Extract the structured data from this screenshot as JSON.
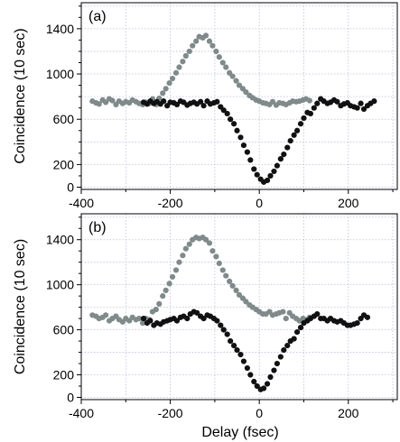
{
  "chart_data": [
    {
      "type": "scatter",
      "panel_label": "(a)",
      "xlabel": "",
      "ylabel": "Coincidence (10 sec)",
      "xlim": [
        -400,
        310
      ],
      "ylim": [
        -20,
        1630
      ],
      "xticks": [
        -400,
        -200,
        0,
        200
      ],
      "xtick_labels": [
        "-400",
        "-200",
        "0",
        "200"
      ],
      "yticks": [
        0,
        200,
        600,
        1000,
        1400
      ],
      "ytick_labels": [
        "0",
        "200",
        "600",
        "1000",
        "1400"
      ],
      "grid": true,
      "colors": {
        "series_gray": "#808a8a",
        "series_black": "#111111",
        "grid": "#b8c0d8"
      },
      "series": [
        {
          "x": [
            -375,
            -367,
            -360,
            -352,
            -345,
            -337,
            -330,
            -322,
            -315,
            -307,
            -300,
            -292,
            -285,
            -277,
            -270,
            -262,
            -255,
            -247,
            -240,
            -232,
            -225,
            -217,
            -210,
            -202,
            -195,
            -187,
            -180,
            -172,
            -165,
            -157,
            -150,
            -142,
            -135,
            -127,
            -120,
            -112,
            -105,
            -97,
            -90,
            -82,
            -75,
            -67,
            -60,
            -52,
            -45,
            -37,
            -30,
            -22,
            -15,
            -7,
            0,
            8,
            15,
            23,
            30,
            38,
            45,
            53,
            60,
            68,
            75,
            83,
            90,
            98,
            105,
            113
          ],
          "y": [
            760,
            745,
            735,
            770,
            750,
            780,
            765,
            730,
            760,
            740,
            755,
            745,
            770,
            755,
            740,
            730,
            750,
            740,
            780,
            730,
            785,
            830,
            870,
            920,
            960,
            1010,
            1060,
            1110,
            1160,
            1200,
            1250,
            1290,
            1330,
            1320,
            1340,
            1290,
            1250,
            1200,
            1150,
            1100,
            1060,
            1010,
            980,
            940,
            900,
            870,
            840,
            810,
            790,
            770,
            760,
            745,
            740,
            730,
            755,
            725,
            745,
            740,
            730,
            745,
            760,
            755,
            760,
            770,
            780,
            765
          ]
        },
        {
          "x": [
            -260,
            -252,
            -245,
            -237,
            -230,
            -222,
            -215,
            -207,
            -200,
            -192,
            -185,
            -177,
            -170,
            -162,
            -155,
            -147,
            -140,
            -132,
            -125,
            -117,
            -110,
            -102,
            -95,
            -87,
            -80,
            -72,
            -65,
            -57,
            -50,
            -42,
            -35,
            -27,
            -20,
            -12,
            -5,
            3,
            10,
            18,
            25,
            33,
            40,
            48,
            55,
            63,
            70,
            78,
            85,
            93,
            100,
            108,
            115,
            123,
            130,
            138,
            145,
            153,
            160,
            168,
            175,
            183,
            190,
            198,
            205,
            213,
            220,
            228,
            235,
            243,
            250,
            258
          ],
          "y": [
            750,
            735,
            760,
            740,
            755,
            735,
            760,
            720,
            750,
            745,
            730,
            760,
            750,
            725,
            740,
            750,
            735,
            755,
            720,
            760,
            735,
            745,
            755,
            710,
            680,
            650,
            600,
            560,
            500,
            440,
            370,
            310,
            240,
            160,
            110,
            70,
            45,
            60,
            100,
            140,
            190,
            250,
            290,
            350,
            410,
            460,
            500,
            560,
            610,
            660,
            650,
            700,
            740,
            780,
            760,
            740,
            750,
            770,
            755,
            720,
            735,
            745,
            720,
            710,
            700,
            740,
            690,
            720,
            740,
            760
          ]
        }
      ]
    },
    {
      "type": "scatter",
      "panel_label": "(b)",
      "xlabel": "Delay (fsec)",
      "ylabel": "Coincidence (10 sec)",
      "xlim": [
        -400,
        310
      ],
      "ylim": [
        -20,
        1630
      ],
      "xticks": [
        -400,
        -200,
        0,
        200
      ],
      "xtick_labels": [
        "-400",
        "-200",
        "0",
        "200"
      ],
      "yticks": [
        0,
        200,
        600,
        1000,
        1400
      ],
      "ytick_labels": [
        "0",
        "200",
        "600",
        "1000",
        "1400"
      ],
      "grid": true,
      "colors": {
        "series_gray": "#808a8a",
        "series_black": "#111111",
        "grid": "#b8c0d8"
      },
      "series": [
        {
          "x": [
            -375,
            -367,
            -360,
            -352,
            -345,
            -337,
            -330,
            -322,
            -315,
            -307,
            -300,
            -292,
            -285,
            -277,
            -270,
            -262,
            -255,
            -247,
            -240,
            -232,
            -225,
            -217,
            -210,
            -202,
            -195,
            -187,
            -180,
            -172,
            -165,
            -157,
            -150,
            -142,
            -135,
            -127,
            -120,
            -112,
            -105,
            -97,
            -90,
            -82,
            -75,
            -67,
            -60,
            -52,
            -45,
            -37,
            -30,
            -22,
            -15,
            -7,
            0,
            8,
            15,
            23,
            30,
            38,
            45,
            53,
            60,
            68,
            75,
            83,
            90,
            98,
            105,
            113
          ],
          "y": [
            730,
            720,
            700,
            710,
            730,
            680,
            700,
            720,
            690,
            670,
            700,
            680,
            710,
            690,
            700,
            660,
            700,
            690,
            760,
            780,
            830,
            900,
            950,
            1010,
            1070,
            1130,
            1200,
            1260,
            1320,
            1360,
            1400,
            1420,
            1410,
            1420,
            1400,
            1370,
            1300,
            1250,
            1190,
            1130,
            1080,
            1030,
            990,
            950,
            910,
            880,
            850,
            820,
            800,
            780,
            760,
            740,
            740,
            760,
            730,
            740,
            750,
            760,
            700,
            750,
            720,
            700,
            680,
            700,
            690,
            710
          ]
        },
        {
          "x": [
            -260,
            -252,
            -245,
            -237,
            -230,
            -222,
            -215,
            -207,
            -200,
            -192,
            -185,
            -177,
            -170,
            -162,
            -155,
            -147,
            -140,
            -132,
            -125,
            -117,
            -110,
            -102,
            -95,
            -87,
            -80,
            -72,
            -65,
            -57,
            -50,
            -42,
            -35,
            -27,
            -20,
            -12,
            -5,
            3,
            10,
            18,
            25,
            33,
            40,
            48,
            55,
            63,
            70,
            78,
            85,
            93,
            100,
            108,
            115,
            123,
            130,
            138,
            145,
            153,
            160,
            168,
            175,
            183,
            190,
            198,
            205,
            213,
            220,
            228,
            235,
            243
          ],
          "y": [
            700,
            660,
            680,
            640,
            660,
            650,
            670,
            680,
            690,
            700,
            680,
            710,
            720,
            700,
            740,
            760,
            750,
            720,
            700,
            730,
            720,
            700,
            680,
            640,
            600,
            560,
            500,
            460,
            420,
            380,
            320,
            260,
            200,
            140,
            100,
            70,
            80,
            120,
            180,
            240,
            300,
            360,
            420,
            460,
            500,
            520,
            580,
            620,
            660,
            680,
            700,
            720,
            740,
            700,
            700,
            680,
            700,
            680,
            670,
            680,
            660,
            640,
            640,
            650,
            660,
            700,
            730,
            710
          ]
        }
      ]
    }
  ]
}
